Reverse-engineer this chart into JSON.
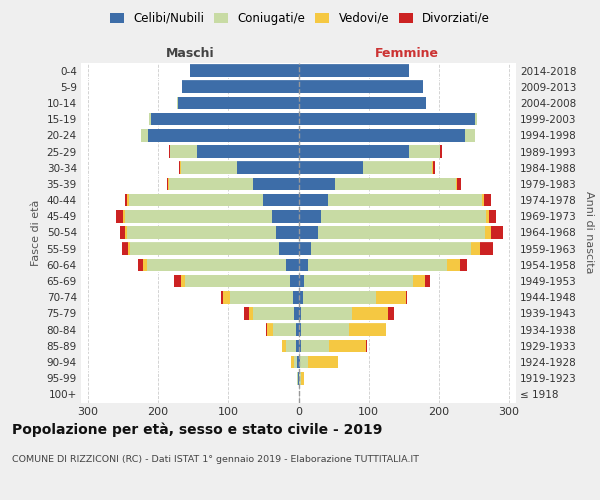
{
  "age_groups": [
    "100+",
    "95-99",
    "90-94",
    "85-89",
    "80-84",
    "75-79",
    "70-74",
    "65-69",
    "60-64",
    "55-59",
    "50-54",
    "45-49",
    "40-44",
    "35-39",
    "30-34",
    "25-29",
    "20-24",
    "15-19",
    "10-14",
    "5-9",
    "0-4"
  ],
  "birth_years": [
    "≤ 1918",
    "1919-1923",
    "1924-1928",
    "1929-1933",
    "1934-1938",
    "1939-1943",
    "1944-1948",
    "1949-1953",
    "1954-1958",
    "1959-1963",
    "1964-1968",
    "1969-1973",
    "1974-1978",
    "1979-1983",
    "1984-1988",
    "1989-1993",
    "1994-1998",
    "1999-2003",
    "2004-2008",
    "2009-2013",
    "2014-2018"
  ],
  "males_celibe": [
    0,
    1,
    2,
    3,
    4,
    7,
    8,
    12,
    18,
    28,
    32,
    38,
    50,
    65,
    88,
    145,
    215,
    210,
    172,
    166,
    155
  ],
  "males_coniugato": [
    0,
    1,
    5,
    15,
    33,
    58,
    90,
    150,
    198,
    212,
    212,
    210,
    192,
    120,
    80,
    38,
    10,
    3,
    1,
    0,
    0
  ],
  "males_vedovo": [
    0,
    0,
    3,
    5,
    8,
    5,
    10,
    5,
    5,
    3,
    3,
    2,
    2,
    1,
    1,
    0,
    0,
    0,
    0,
    0,
    0
  ],
  "males_divorziato": [
    0,
    0,
    0,
    1,
    1,
    8,
    2,
    10,
    8,
    8,
    8,
    10,
    3,
    1,
    2,
    1,
    0,
    0,
    0,
    0,
    0
  ],
  "females_nubile": [
    0,
    1,
    2,
    4,
    4,
    4,
    6,
    8,
    14,
    18,
    28,
    32,
    42,
    52,
    92,
    158,
    238,
    252,
    182,
    178,
    158
  ],
  "females_coniugata": [
    0,
    2,
    12,
    40,
    68,
    72,
    105,
    155,
    198,
    228,
    238,
    235,
    220,
    172,
    98,
    43,
    13,
    3,
    0,
    0,
    0
  ],
  "females_vedova": [
    1,
    5,
    42,
    52,
    52,
    52,
    42,
    18,
    18,
    13,
    8,
    4,
    2,
    2,
    1,
    0,
    0,
    0,
    0,
    0,
    0
  ],
  "females_divorziata": [
    0,
    0,
    0,
    1,
    1,
    8,
    2,
    7,
    10,
    18,
    18,
    10,
    10,
    5,
    3,
    3,
    1,
    0,
    0,
    0,
    0
  ],
  "color_celibe": "#3d6da8",
  "color_coniugato": "#c8dba4",
  "color_vedovo": "#f5c842",
  "color_divorziato": "#cc2222",
  "xlim": 310,
  "xticks": [
    -300,
    -200,
    -100,
    0,
    100,
    200,
    300
  ],
  "title": "Popolazione per età, sesso e stato civile - 2019",
  "subtitle": "COMUNE DI RIZZICONI (RC) - Dati ISTAT 1° gennaio 2019 - Elaborazione TUTTITALIA.IT",
  "label_maschi": "Maschi",
  "label_femmine": "Femmine",
  "ylabel_left": "Fasce di età",
  "ylabel_right": "Anni di nascita",
  "legend_labels": [
    "Celibi/Nubili",
    "Coniugati/e",
    "Vedovi/e",
    "Divorziati/e"
  ],
  "bg_color": "#efefef",
  "plot_bg": "#ffffff",
  "grid_color": "#cccccc",
  "bar_height": 0.78
}
